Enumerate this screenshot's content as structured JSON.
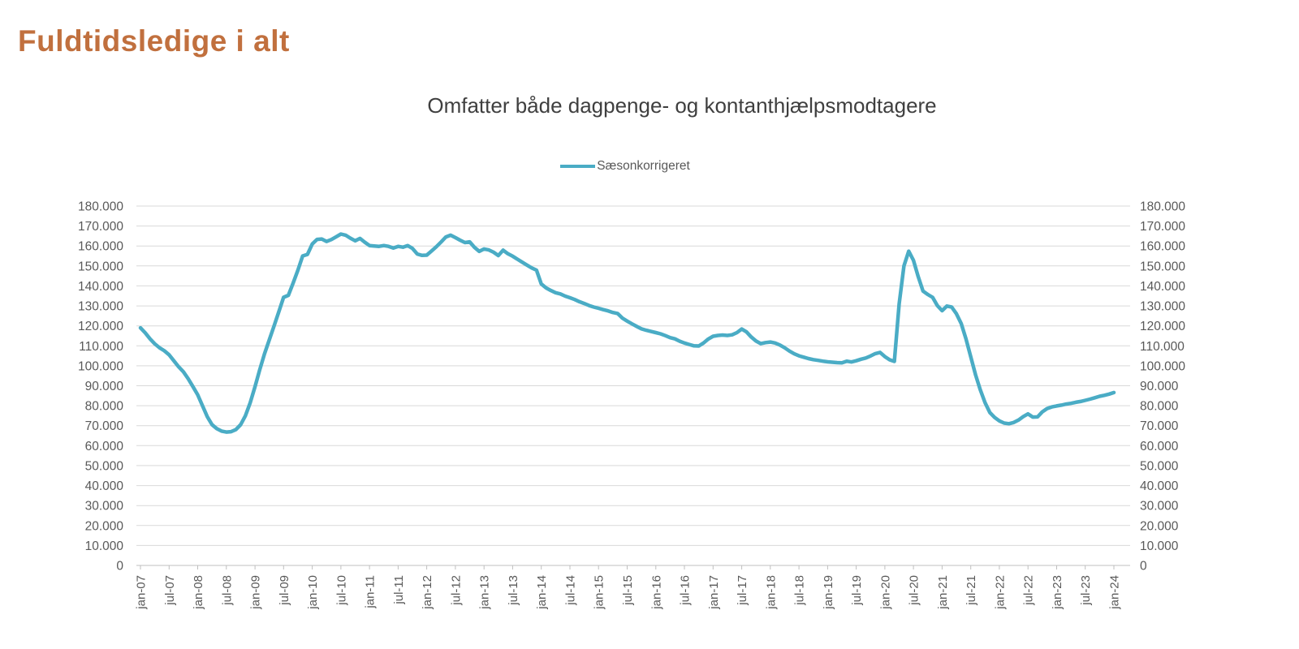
{
  "title": "Fuldtidsledige i alt",
  "chart": {
    "subtitle": "Omfatter både dagpenge- og kontanthjælpsmodtagere",
    "legend": {
      "label": "Sæsonkorrigeret"
    }
  },
  "colors": {
    "title": "#C1703E",
    "subtitle": "#3F3F3F",
    "axis_text": "#595959",
    "gridline": "#D9D9D9",
    "axis_line": "#BFBFBF",
    "series_line": "#4AACC5"
  },
  "chart_data": {
    "type": "line",
    "title": "Omfatter både dagpenge- og kontanthjælpsmodtagere",
    "legend_position": "top-center",
    "grid": "horizontal",
    "y_axis_sides": "both",
    "ylim": [
      0,
      180000
    ],
    "y_tick_step": 10000,
    "y_tick_labels": [
      "180.000",
      "170.000",
      "160.000",
      "150.000",
      "140.000",
      "130.000",
      "120.000",
      "110.000",
      "100.000",
      "90.000",
      "80.000",
      "70.000",
      "60.000",
      "50.000",
      "40.000",
      "30.000",
      "20.000",
      "10.000",
      "0"
    ],
    "x_start": "jan-07",
    "x_frequency": "monthly",
    "x_tick_every_months": 6,
    "x_tick_labels": [
      "jan-07",
      "jul-07",
      "jan-08",
      "jul-08",
      "jan-09",
      "jul-09",
      "jan-10",
      "jul-10",
      "jan-11",
      "jul-11",
      "jan-12",
      "jul-12",
      "jan-13",
      "jul-13",
      "jan-14",
      "jul-14",
      "jan-15",
      "jul-15",
      "jan-16",
      "jul-16",
      "jan-17",
      "jul-17",
      "jan-18",
      "jul-18",
      "jan-19",
      "jul-19",
      "jan-20",
      "jul-20",
      "jan-21",
      "jul-21",
      "jan-22",
      "jul-22",
      "jan-23",
      "jul-23",
      "jan-24"
    ],
    "series": [
      {
        "name": "Sæsonkorrigeret",
        "color": "#4AACC5",
        "values": [
          119000,
          116500,
          113500,
          111000,
          109000,
          107500,
          105500,
          102500,
          99500,
          97000,
          93500,
          89500,
          85500,
          80000,
          74500,
          70500,
          68500,
          67300,
          66800,
          67000,
          68000,
          70500,
          75000,
          81500,
          89500,
          98000,
          106000,
          113000,
          120000,
          127000,
          134300,
          135300,
          141500,
          148000,
          155000,
          155800,
          161000,
          163300,
          163500,
          162300,
          163200,
          164600,
          166000,
          165400,
          163900,
          162600,
          163800,
          161900,
          160200,
          160000,
          159800,
          160200,
          159800,
          159000,
          159800,
          159400,
          160200,
          158800,
          156000,
          155300,
          155400,
          157500,
          159600,
          162000,
          164500,
          165400,
          164200,
          162900,
          161700,
          162100,
          159300,
          157300,
          158500,
          158000,
          156900,
          155200,
          157900,
          156100,
          154900,
          153400,
          151900,
          150400,
          149000,
          147900,
          141000,
          139000,
          137700,
          136600,
          136000,
          134900,
          134100,
          133200,
          132100,
          131200,
          130200,
          129400,
          128800,
          128100,
          127500,
          126700,
          126200,
          123900,
          122400,
          121000,
          119700,
          118500,
          117800,
          117200,
          116600,
          116000,
          115100,
          114100,
          113500,
          112300,
          111400,
          110700,
          110000,
          109900,
          111400,
          113400,
          114800,
          115200,
          115400,
          115200,
          115500,
          116600,
          118400,
          117000,
          114400,
          112400,
          111100,
          111600,
          111900,
          111400,
          110400,
          109000,
          107400,
          106000,
          105000,
          104300,
          103600,
          103100,
          102700,
          102300,
          102000,
          101800,
          101600,
          101500,
          102300,
          101900,
          102500,
          103300,
          103900,
          104900,
          106100,
          106700,
          104600,
          103000,
          102200,
          131000,
          150000,
          157400,
          152800,
          144600,
          137400,
          135700,
          134300,
          130200,
          127600,
          129900,
          129400,
          126100,
          121200,
          113500,
          104500,
          95500,
          88000,
          81500,
          76600,
          74100,
          72400,
          71300,
          71000,
          71600,
          72800,
          74500,
          75900,
          74300,
          74400,
          76900,
          78600,
          79400,
          79900,
          80300,
          80800,
          81200,
          81700,
          82100,
          82700,
          83300,
          84000,
          84700,
          85200,
          85800,
          86600
        ]
      }
    ]
  }
}
